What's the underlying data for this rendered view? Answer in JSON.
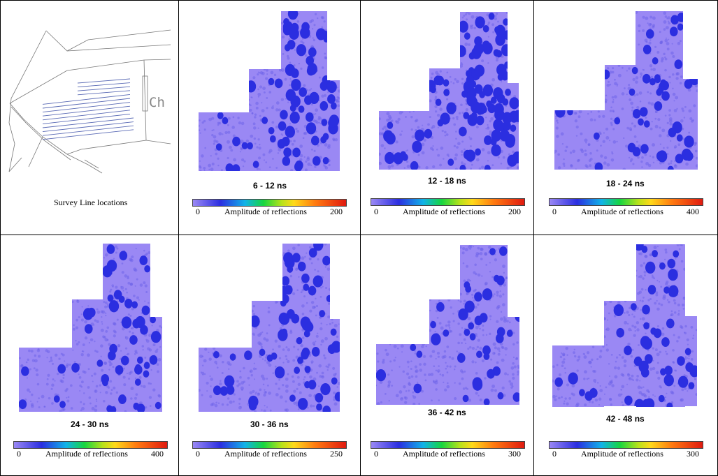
{
  "survey": {
    "caption": "Survey Line locations",
    "site_text": "Ch"
  },
  "scale_title": "Amplitude of reflections",
  "scale_min": "0",
  "colors": {
    "background": "#9a88f4",
    "low": "#2b2ee0",
    "mid": "#16d640",
    "high": "#ffd91a",
    "peak": "#e01a10"
  },
  "slices": [
    {
      "title": "6 - 12 ns",
      "max": "200"
    },
    {
      "title": "12 - 18 ns",
      "max": "200"
    },
    {
      "title": "18 - 24 ns",
      "max": "400"
    },
    {
      "title": "24 - 30 ns",
      "max": "400"
    },
    {
      "title": "30 - 36 ns",
      "max": "250"
    },
    {
      "title": "36 - 42 ns",
      "max": "300"
    },
    {
      "title": "42 - 48 ns",
      "max": "300"
    }
  ]
}
